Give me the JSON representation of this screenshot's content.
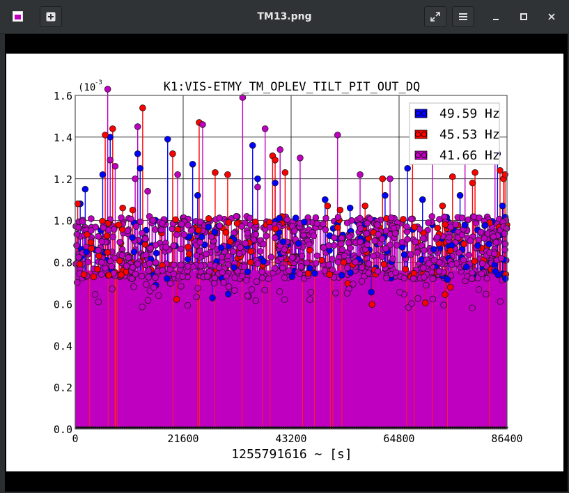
{
  "window": {
    "title": "TM13.png",
    "app_icon": "image-viewer-icon",
    "buttons": {
      "new": "plus-icon",
      "fullscreen": "expand-icon",
      "menu": "hamburger-menu-icon",
      "minimize": "minimize-icon",
      "maximize": "maximize-icon",
      "close": "close-icon"
    }
  },
  "chart_data": {
    "type": "scatter",
    "style": "stem",
    "title": "K1:VIS-ETMY_TM_OPLEV_TILT_PIT_OUT_DQ",
    "xlabel": "1255791616 ~ [s]",
    "ylabel": "",
    "y_multiplier": "(10",
    "y_exponent": "-3",
    "xlim": [
      0,
      86400
    ],
    "ylim": [
      0,
      1.6
    ],
    "xticks": [
      "0",
      "21600",
      "43200",
      "64800",
      "86400"
    ],
    "yticks": [
      "0.0",
      "0.2",
      "0.4",
      "0.6",
      "0.8",
      "1.0",
      "1.2",
      "1.4",
      "1.6"
    ],
    "grid": true,
    "legend_position": "top-right",
    "series": [
      {
        "name": "49.59 Hz",
        "color": "#0000ff",
        "peaks": [
          [
            1000,
            1.08
          ],
          [
            2000,
            1.15
          ],
          [
            5500,
            1.22
          ],
          [
            7000,
            1.4
          ],
          [
            12500,
            1.32
          ],
          [
            13000,
            1.25
          ],
          [
            18500,
            1.39
          ],
          [
            23500,
            1.27
          ],
          [
            24500,
            1.12
          ],
          [
            35500,
            1.36
          ],
          [
            36500,
            1.2
          ],
          [
            40000,
            1.18
          ],
          [
            50000,
            1.1
          ],
          [
            55000,
            1.06
          ],
          [
            62000,
            1.12
          ],
          [
            66500,
            1.25
          ],
          [
            69500,
            1.1
          ],
          [
            77000,
            1.12
          ],
          [
            84500,
            1.32
          ],
          [
            85500,
            1.07
          ]
        ]
      },
      {
        "name": "45.53 Hz",
        "color": "#ff0000",
        "peaks": [
          [
            500,
            1.08
          ],
          [
            6000,
            1.41
          ],
          [
            7500,
            1.44
          ],
          [
            9500,
            1.06
          ],
          [
            11500,
            1.05
          ],
          [
            13500,
            1.54
          ],
          [
            19500,
            1.32
          ],
          [
            24800,
            1.47
          ],
          [
            28000,
            1.23
          ],
          [
            30500,
            1.22
          ],
          [
            39500,
            1.31
          ],
          [
            40000,
            1.29
          ],
          [
            42000,
            1.23
          ],
          [
            50500,
            1.07
          ],
          [
            53000,
            1.05
          ],
          [
            58000,
            1.07
          ],
          [
            61500,
            1.2
          ],
          [
            67500,
            1.38
          ],
          [
            73500,
            1.07
          ],
          [
            75500,
            1.21
          ],
          [
            79500,
            1.18
          ],
          [
            80000,
            1.23
          ],
          [
            85000,
            1.24
          ],
          [
            85700,
            1.2
          ],
          [
            86000,
            1.22
          ]
        ]
      },
      {
        "name": "41.66 Hz",
        "color": "#c000c0",
        "peaks": [
          [
            6500,
            1.63
          ],
          [
            7000,
            1.29
          ],
          [
            8000,
            1.26
          ],
          [
            12000,
            1.2
          ],
          [
            12500,
            1.45
          ],
          [
            14500,
            1.14
          ],
          [
            20500,
            1.22
          ],
          [
            25500,
            1.46
          ],
          [
            33500,
            1.59
          ],
          [
            36500,
            1.16
          ],
          [
            38000,
            1.44
          ],
          [
            41000,
            1.34
          ],
          [
            45000,
            1.3
          ],
          [
            52500,
            1.41
          ],
          [
            57000,
            1.22
          ],
          [
            63000,
            1.2
          ],
          [
            71500,
            1.31
          ],
          [
            78000,
            1.33
          ],
          [
            84000,
            1.49
          ]
        ]
      }
    ]
  }
}
